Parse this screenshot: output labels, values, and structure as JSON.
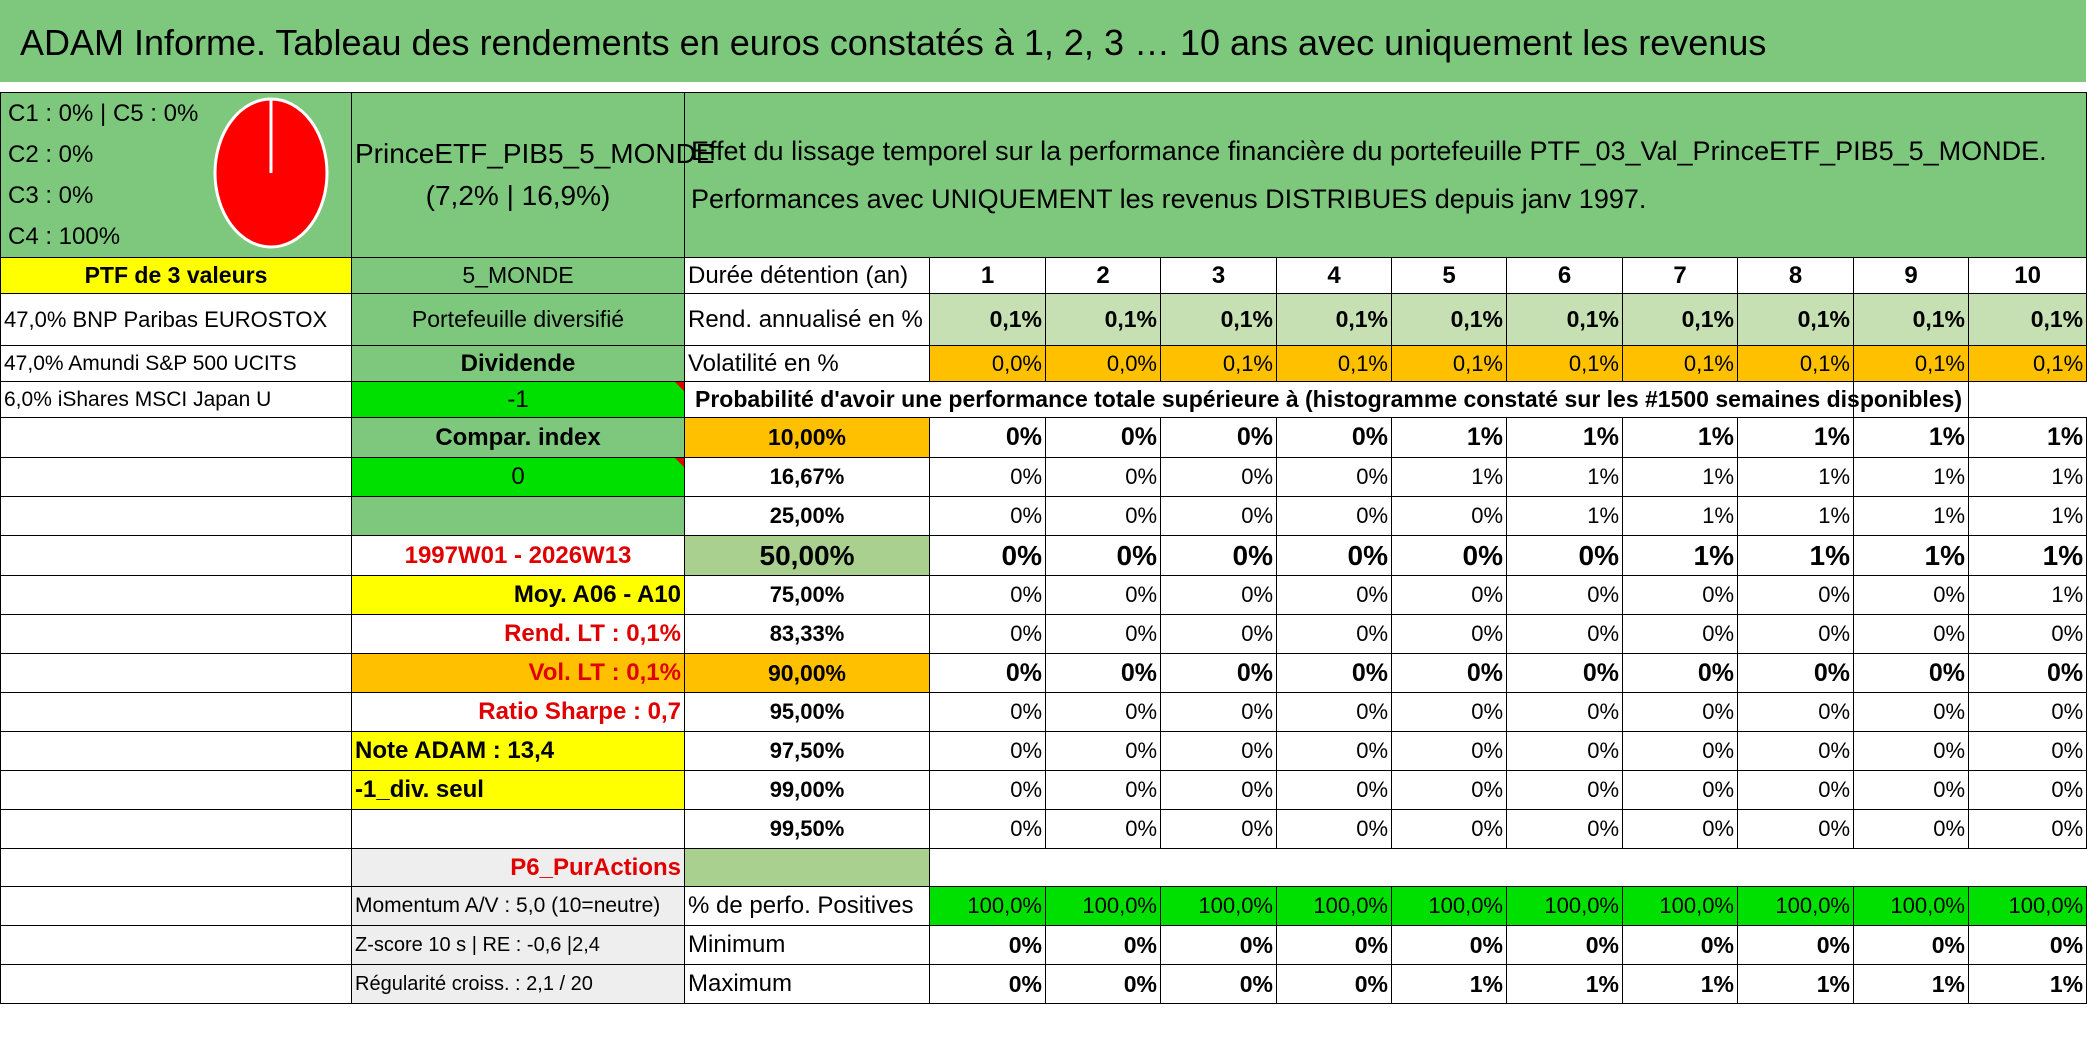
{
  "title": "ADAM Informe. Tableau des rendements en euros constatés à 1, 2, 3 … 10 ans avec uniquement les revenus",
  "legend": [
    "C1 : 0% | C5 : 0%",
    "C2 : 0%",
    "C3 : 0%",
    "C4 : 100%"
  ],
  "pie": {
    "color": "#ff0000",
    "slice_C4_pct": 100
  },
  "fund": {
    "name": "PrinceETF_PIB5_5_MONDE",
    "stats": "(7,2% | 16,9%)"
  },
  "description": {
    "line1": "Effet du lissage temporel sur la performance financière du portefeuille PTF_03_Val_PrinceETF_PIB5_5_MONDE.",
    "line2": "Performances avec UNIQUEMENT les revenus DISTRIBUES depuis janv 1997."
  },
  "left": {
    "ptf_label": "PTF de 3 valeurs",
    "holdings": [
      "47,0% BNP Paribas EUROSTOX",
      "47,0% Amundi S&P 500 UCITS",
      "6,0% iShares MSCI Japan U"
    ],
    "region": "5_MONDE",
    "type": "Portefeuille diversifié",
    "dividende": "Dividende",
    "div_value": "-1",
    "compar": "Compar. index",
    "compar_value": "0",
    "period": "1997W01 - 2026W13",
    "moy": "Moy. A06 - A10",
    "rend_lt": "Rend. LT : 0,1%",
    "vol_lt": "Vol. LT : 0,1%",
    "sharpe": "Ratio Sharpe : 0,7",
    "note": "Note ADAM : 13,4",
    "div_seul": "-1_div. seul",
    "p6": "P6_PurActions",
    "momentum": "Momentum A/V : 5,0 (10=neutre)",
    "zscore": "Z-score 10 s | RE : -0,6 |2,4",
    "regularite": "Régularité croiss. : 2,1 / 20"
  },
  "table": {
    "duree_label": "Durée détention (an)",
    "years": [
      "1",
      "2",
      "3",
      "4",
      "5",
      "6",
      "7",
      "8",
      "9",
      "10"
    ],
    "rend_label": "Rend. annualisé en %",
    "rend": [
      "0,1%",
      "0,1%",
      "0,1%",
      "0,1%",
      "0,1%",
      "0,1%",
      "0,1%",
      "0,1%",
      "0,1%",
      "0,1%"
    ],
    "vol_label": "Volatilité en %",
    "vol": [
      "0,0%",
      "0,0%",
      "0,1%",
      "0,1%",
      "0,1%",
      "0,1%",
      "0,1%",
      "0,1%",
      "0,1%",
      "0,1%"
    ],
    "proba_label": "Probabilité d'avoir une performance totale supérieure à (histogramme constaté sur les #1500 semaines disponibles)",
    "thresholds": [
      {
        "t": "10,00%",
        "v": [
          "0%",
          "0%",
          "0%",
          "0%",
          "1%",
          "1%",
          "1%",
          "1%",
          "1%",
          "1%"
        ]
      },
      {
        "t": "16,67%",
        "v": [
          "0%",
          "0%",
          "0%",
          "0%",
          "1%",
          "1%",
          "1%",
          "1%",
          "1%",
          "1%"
        ]
      },
      {
        "t": "25,00%",
        "v": [
          "0%",
          "0%",
          "0%",
          "0%",
          "0%",
          "1%",
          "1%",
          "1%",
          "1%",
          "1%"
        ]
      },
      {
        "t": "50,00%",
        "v": [
          "0%",
          "0%",
          "0%",
          "0%",
          "0%",
          "0%",
          "1%",
          "1%",
          "1%",
          "1%"
        ]
      },
      {
        "t": "75,00%",
        "v": [
          "0%",
          "0%",
          "0%",
          "0%",
          "0%",
          "0%",
          "0%",
          "0%",
          "0%",
          "1%"
        ]
      },
      {
        "t": "83,33%",
        "v": [
          "0%",
          "0%",
          "0%",
          "0%",
          "0%",
          "0%",
          "0%",
          "0%",
          "0%",
          "0%"
        ]
      },
      {
        "t": "90,00%",
        "v": [
          "0%",
          "0%",
          "0%",
          "0%",
          "0%",
          "0%",
          "0%",
          "0%",
          "0%",
          "0%"
        ]
      },
      {
        "t": "95,00%",
        "v": [
          "0%",
          "0%",
          "0%",
          "0%",
          "0%",
          "0%",
          "0%",
          "0%",
          "0%",
          "0%"
        ]
      },
      {
        "t": "97,50%",
        "v": [
          "0%",
          "0%",
          "0%",
          "0%",
          "0%",
          "0%",
          "0%",
          "0%",
          "0%",
          "0%"
        ]
      },
      {
        "t": "99,00%",
        "v": [
          "0%",
          "0%",
          "0%",
          "0%",
          "0%",
          "0%",
          "0%",
          "0%",
          "0%",
          "0%"
        ]
      },
      {
        "t": "99,50%",
        "v": [
          "0%",
          "0%",
          "0%",
          "0%",
          "0%",
          "0%",
          "0%",
          "0%",
          "0%",
          "0%"
        ]
      }
    ],
    "pos_label": "% de perfo. Positives",
    "pos": [
      "100,0%",
      "100,0%",
      "100,0%",
      "100,0%",
      "100,0%",
      "100,0%",
      "100,0%",
      "100,0%",
      "100,0%",
      "100,0%"
    ],
    "min_label": "Minimum",
    "min": [
      "0%",
      "0%",
      "0%",
      "0%",
      "0%",
      "0%",
      "0%",
      "0%",
      "0%",
      "0%"
    ],
    "max_label": "Maximum",
    "max": [
      "0%",
      "0%",
      "0%",
      "0%",
      "1%",
      "1%",
      "1%",
      "1%",
      "1%",
      "1%"
    ]
  }
}
